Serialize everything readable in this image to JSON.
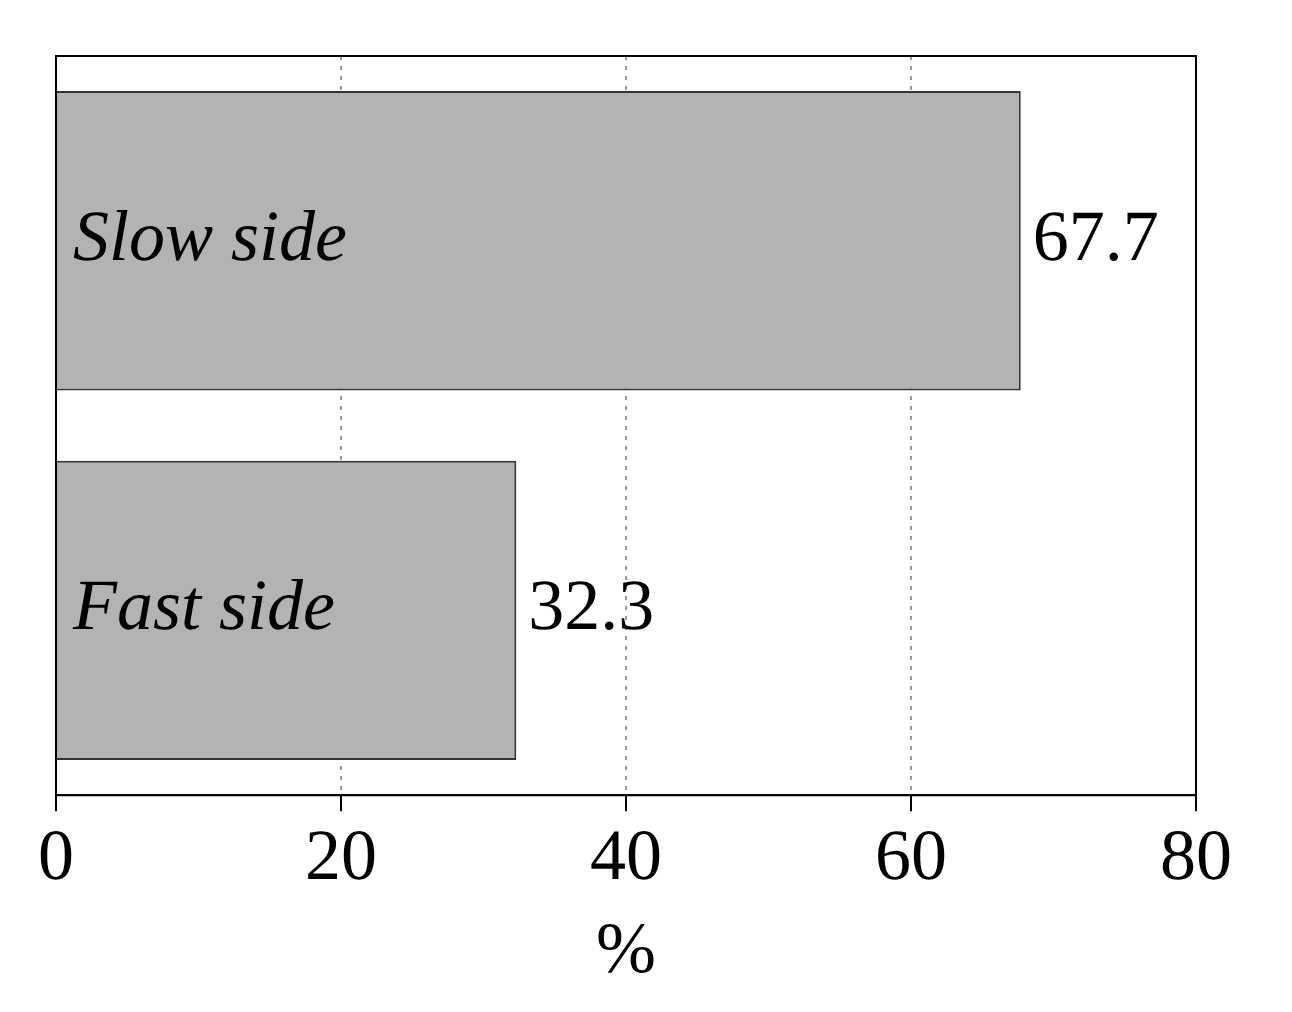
{
  "chart_data": {
    "type": "bar",
    "orientation": "horizontal",
    "xlabel": "%",
    "categories": [
      "Slow side",
      "Fast side"
    ],
    "values": [
      67.7,
      32.3
    ],
    "color": "#b3b3b3",
    "xlim": [
      0,
      80
    ],
    "xticks": [
      0,
      20,
      40,
      60,
      80
    ],
    "grid": "x",
    "data_labels": true,
    "legend": false
  }
}
